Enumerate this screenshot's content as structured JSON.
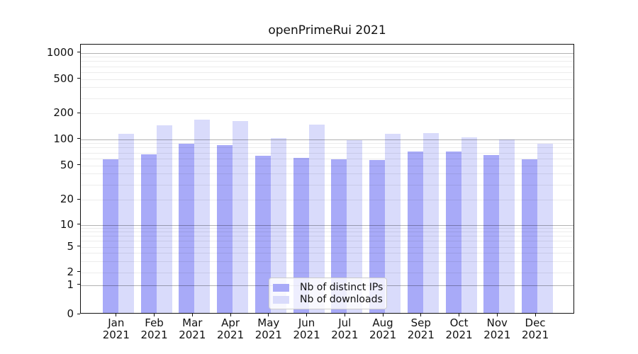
{
  "title": "openPrimeRui 2021",
  "chart_data": {
    "type": "bar",
    "title": "openPrimeRui 2021",
    "categories": [
      "Jan",
      "Feb",
      "Mar",
      "Apr",
      "May",
      "Jun",
      "Jul",
      "Aug",
      "Sep",
      "Oct",
      "Nov",
      "Dec"
    ],
    "category_year": "2021",
    "series": [
      {
        "name": "Nb of distinct IPs",
        "color": "#a8aaf8",
        "values": [
          57,
          64,
          86,
          82,
          62,
          59,
          56,
          55,
          70,
          69,
          63,
          56
        ]
      },
      {
        "name": "Nb of downloads",
        "color": "#d9dbfb",
        "values": [
          110,
          139,
          163,
          156,
          100,
          142,
          94,
          110,
          114,
          101,
          96,
          85
        ]
      }
    ],
    "yscale": "symlog",
    "yticks": [
      0,
      1,
      2,
      5,
      10,
      20,
      50,
      100,
      200,
      500,
      1000
    ],
    "ylim": [
      0,
      1250
    ],
    "grid": true,
    "legend_position": "lower center"
  }
}
